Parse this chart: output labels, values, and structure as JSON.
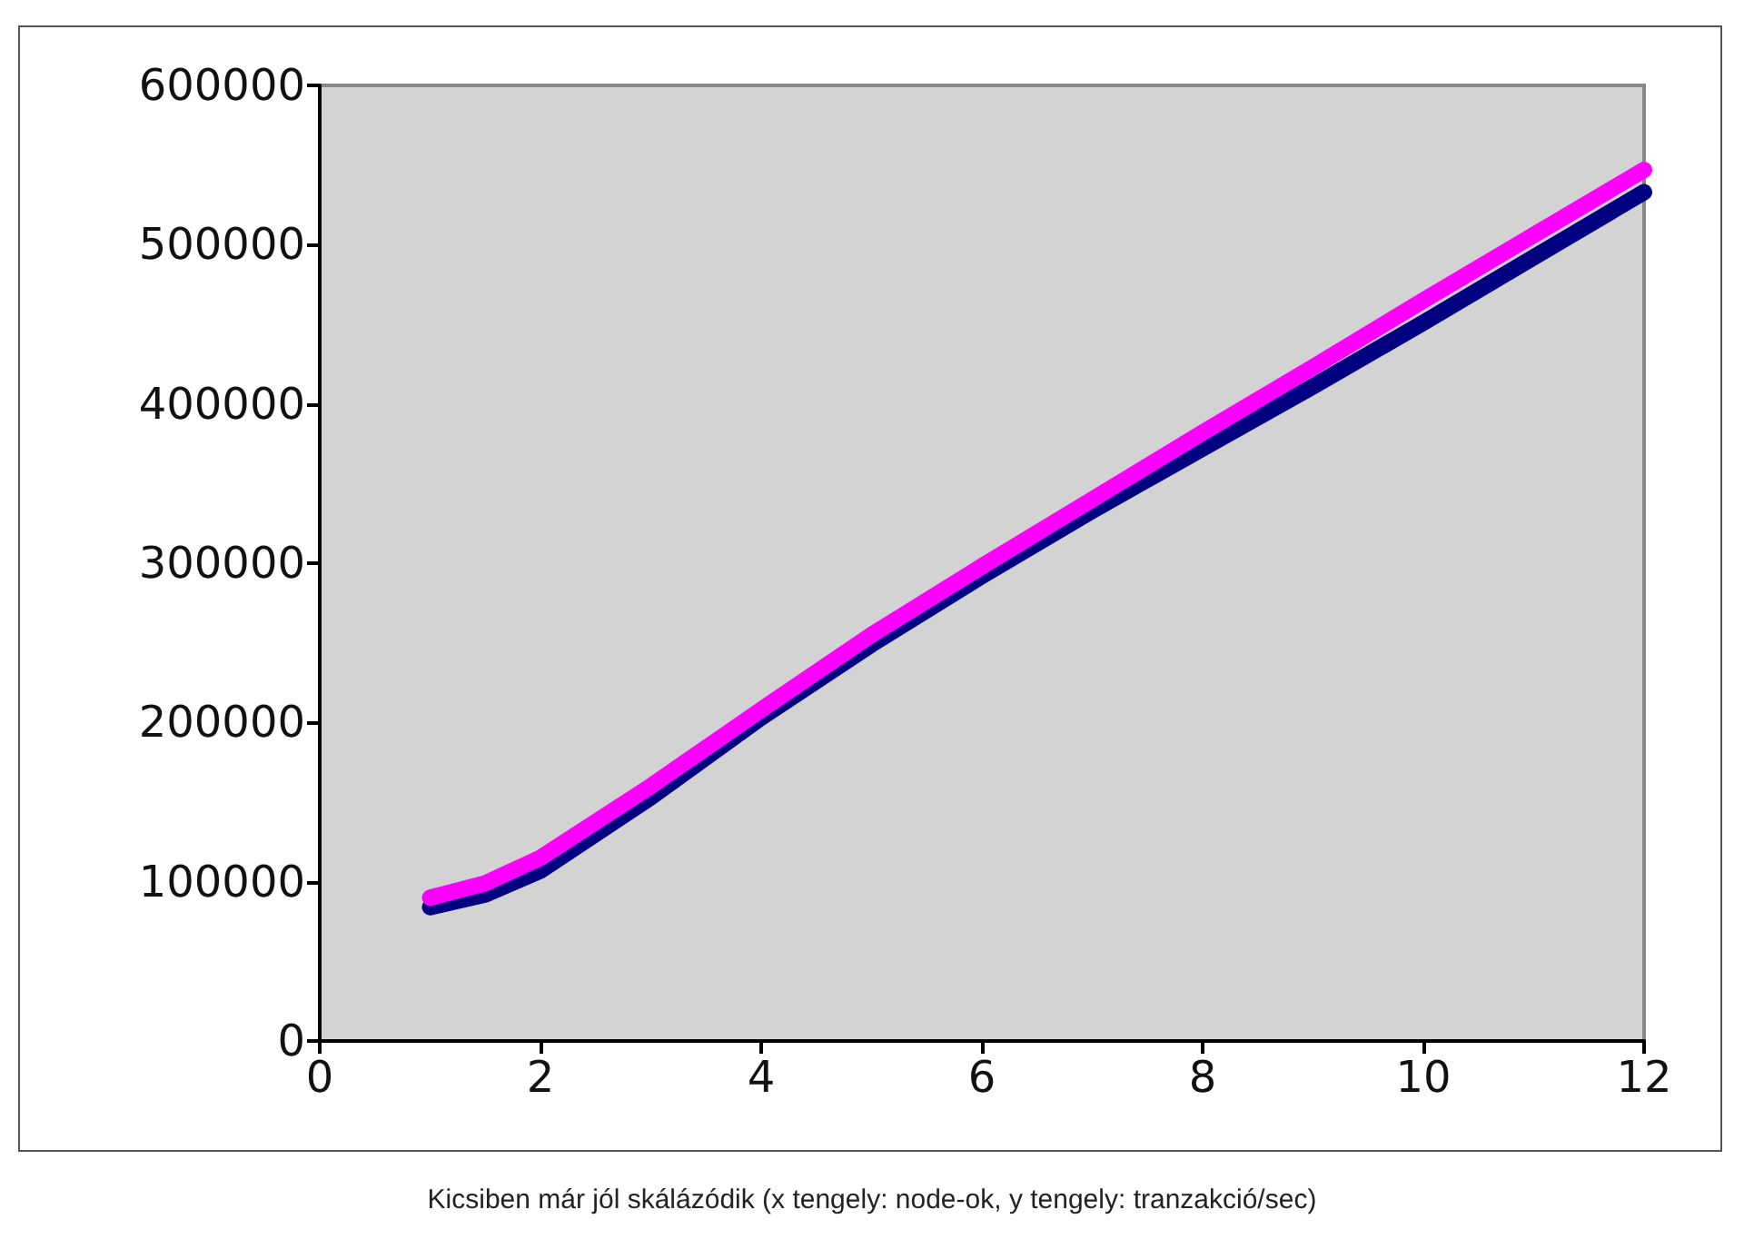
{
  "chart_data": {
    "type": "line",
    "x": [
      1,
      1.5,
      2,
      3,
      4,
      5,
      6,
      7,
      8,
      9,
      10,
      11,
      12
    ],
    "series": [
      {
        "color": "#000080",
        "values": [
          84000,
          92000,
          107000,
          153000,
          203000,
          249000,
          292000,
          333000,
          372000,
          411000,
          451000,
          492000,
          533000
        ]
      },
      {
        "color": "#ff00ff",
        "values": [
          90000,
          99000,
          115000,
          160000,
          208000,
          255000,
          298000,
          340000,
          382000,
          423000,
          465000,
          506000,
          547000
        ]
      }
    ],
    "xlim": [
      0,
      12
    ],
    "xticks": [
      0,
      2,
      4,
      6,
      8,
      10,
      12
    ],
    "ylim": [
      0,
      600000
    ],
    "yticks": [
      0,
      100000,
      200000,
      300000,
      400000,
      500000,
      600000
    ],
    "grid": false,
    "marker": "none",
    "line_style": "solid",
    "annotations": [
      "Kicsiben már jól skálázódik (x tengely: node-ok, y tengely: tranzakció/sec)"
    ]
  }
}
